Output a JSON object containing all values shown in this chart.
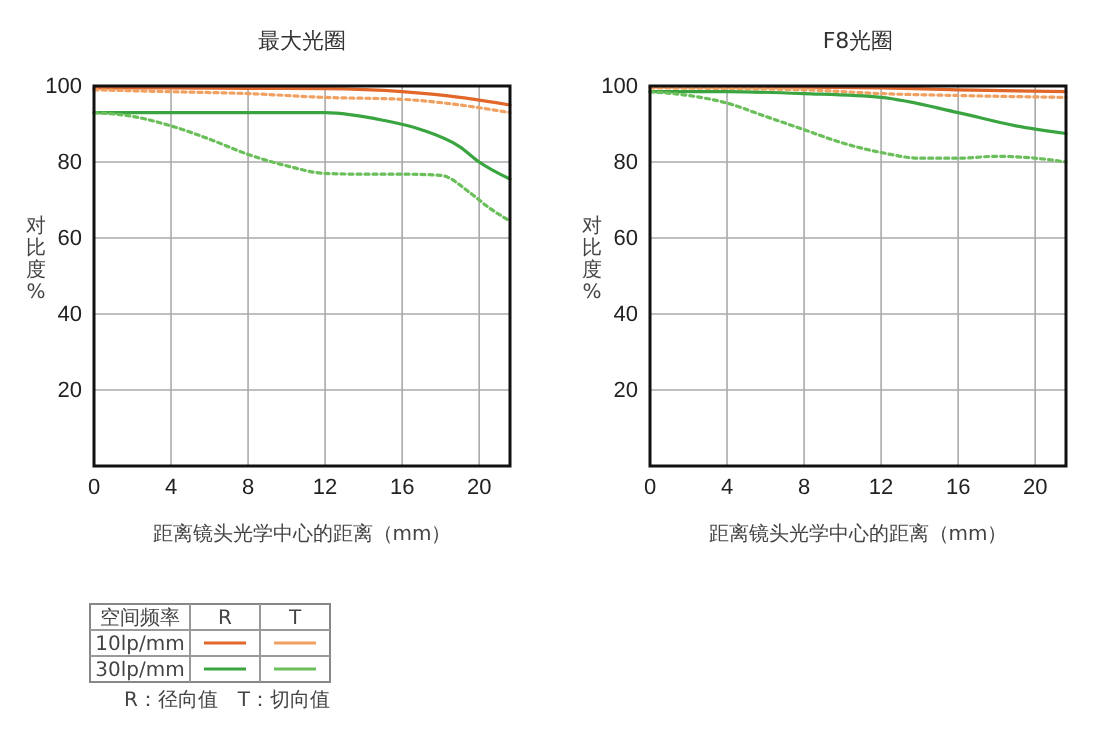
{
  "chart_data": [
    {
      "type": "line",
      "title": "最大光圈",
      "xlabel": "距离镜头光学中心的距离（mm）",
      "ylabel": "对比度%",
      "xlim": [
        0,
        21.6
      ],
      "ylim": [
        0,
        100
      ],
      "xticks": [
        0,
        4,
        8,
        12,
        16,
        20
      ],
      "yticks": [
        {
          "value": 0,
          "label": null
        },
        20,
        40,
        60,
        80,
        100
      ],
      "grid": true,
      "annotations": [
        "空间频率",
        "R",
        "T",
        "10lp/mm",
        "30lp/mm",
        "R：径向值　T：切向值"
      ],
      "series": [
        {
          "color": "#e2672a",
          "line_style": "solid",
          "x": [
            0,
            4,
            8,
            12,
            16,
            19,
            21.6
          ],
          "values": [
            99.5,
            99.5,
            99.4,
            99.3,
            98.5,
            97,
            95
          ]
        },
        {
          "color": "#f0a060",
          "line_style": "dotted",
          "x": [
            0,
            4,
            8,
            12,
            16,
            19,
            21.6
          ],
          "values": [
            99,
            98.5,
            98,
            97,
            96.5,
            95,
            93
          ]
        },
        {
          "color": "#3aa540",
          "line_style": "solid",
          "x": [
            0,
            4,
            8,
            12,
            15,
            17,
            19,
            20,
            21.6
          ],
          "values": [
            93,
            93,
            93,
            93,
            91,
            88.5,
            84,
            80,
            75.5
          ]
        },
        {
          "color": "#6abf5a",
          "line_style": "dotted",
          "x": [
            0,
            2,
            4,
            6,
            8,
            10,
            12,
            14,
            16,
            18,
            19.5,
            20.5,
            21.6
          ],
          "values": [
            93,
            92,
            89.5,
            86,
            82,
            79,
            77,
            76.8,
            76.8,
            76.5,
            72,
            68,
            64.5
          ]
        }
      ]
    },
    {
      "type": "line",
      "title": "F8光圈",
      "xlabel": "距离镜头光学中心的距离（mm）",
      "ylabel": "对比度%",
      "xlim": [
        0,
        21.6
      ],
      "ylim": [
        0,
        100
      ],
      "xticks": [
        0,
        4,
        8,
        12,
        16,
        20
      ],
      "yticks": [
        {
          "value": 0,
          "label": null
        },
        20,
        40,
        60,
        80,
        100
      ],
      "grid": true,
      "series": [
        {
          "color": "#e2672a",
          "line_style": "solid",
          "x": [
            0,
            8,
            12,
            16,
            21.6
          ],
          "values": [
            99.8,
            99.7,
            99.5,
            99,
            98.5
          ]
        },
        {
          "color": "#f0a060",
          "line_style": "dotted",
          "x": [
            0,
            8,
            12,
            16,
            21.6
          ],
          "values": [
            99.5,
            99,
            98,
            97.5,
            97
          ]
        },
        {
          "color": "#3aa540",
          "line_style": "solid",
          "x": [
            0,
            4,
            8,
            12,
            16,
            19,
            21.6
          ],
          "values": [
            98.5,
            98.5,
            98,
            97,
            93,
            89.5,
            87.5
          ]
        },
        {
          "color": "#6abf5a",
          "line_style": "dotted",
          "x": [
            0,
            2,
            4,
            6,
            8,
            10,
            12,
            14,
            16,
            18,
            20,
            21.6
          ],
          "values": [
            98.5,
            97.5,
            95.5,
            92,
            88.5,
            85,
            82.5,
            81,
            81,
            81.5,
            81,
            80
          ]
        }
      ]
    }
  ]
}
